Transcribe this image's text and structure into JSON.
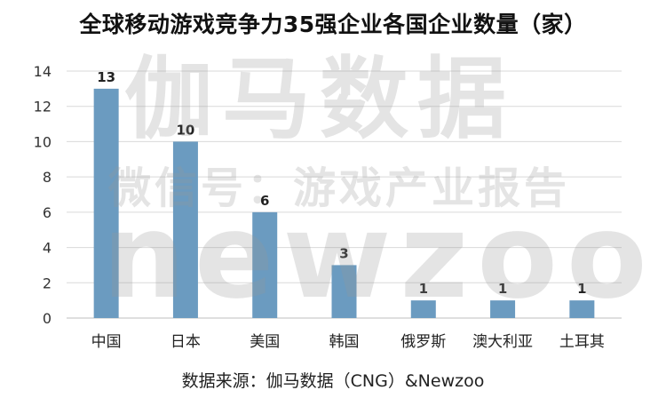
{
  "title": "全球移动游戏竞争力35强企业各国企业数量（家）",
  "source": "数据来源：伽马数据（CNG）&Newzoo",
  "watermark": {
    "line1": "伽马数据",
    "line2": "微信号：游戏产业报告",
    "line3": "newzoo"
  },
  "colors": {
    "bar": "#6b9bc0",
    "grid": "#d9d9d9",
    "axis": "#bfbfbf"
  },
  "chart_data": {
    "type": "bar",
    "title": "全球移动游戏竞争力35强企业各国企业数量（家）",
    "categories": [
      "中国",
      "日本",
      "美国",
      "韩国",
      "俄罗斯",
      "澳大利亚",
      "土耳其"
    ],
    "values": [
      13,
      10,
      6,
      3,
      1,
      1,
      1
    ],
    "ylim": [
      0,
      14
    ],
    "yticks": [
      0,
      2,
      4,
      6,
      8,
      10,
      12,
      14
    ],
    "grid": true,
    "legend": "none",
    "xlabel": "",
    "ylabel": ""
  }
}
